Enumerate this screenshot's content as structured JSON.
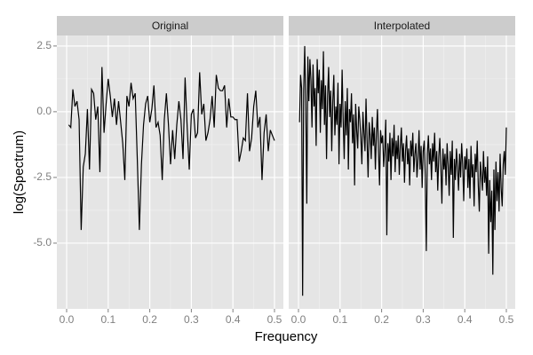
{
  "chart_data": [
    {
      "type": "line",
      "title": "Original",
      "xlabel": "Frequency",
      "ylabel": "log(Spectrum)",
      "color": "#000000",
      "xlim": [
        -0.0235,
        0.5214
      ],
      "ylim": [
        -7.5,
        2.9
      ],
      "xticks": [
        {
          "value": 0,
          "label": "0.0"
        },
        0.1,
        0.2,
        0.3,
        0.4,
        0.5
      ],
      "yticks": [
        {
          "value": -5,
          "label": "-5.0"
        },
        -2.5,
        {
          "value": 0,
          "label": "0.0"
        },
        2.5
      ],
      "x": [
        0.005,
        0.01,
        0.015,
        0.02,
        0.025,
        0.03,
        0.035,
        0.04,
        0.045,
        0.05,
        0.055,
        0.06,
        0.065,
        0.07,
        0.075,
        0.08,
        0.085,
        0.09,
        0.095,
        0.1,
        0.105,
        0.11,
        0.115,
        0.12,
        0.125,
        0.13,
        0.135,
        0.14,
        0.145,
        0.15,
        0.155,
        0.16,
        0.165,
        0.17,
        0.175,
        0.18,
        0.185,
        0.19,
        0.195,
        0.2,
        0.205,
        0.21,
        0.215,
        0.22,
        0.225,
        0.23,
        0.235,
        0.24,
        0.245,
        0.25,
        0.255,
        0.26,
        0.265,
        0.27,
        0.275,
        0.28,
        0.285,
        0.29,
        0.295,
        0.3,
        0.305,
        0.31,
        0.315,
        0.32,
        0.325,
        0.33,
        0.335,
        0.34,
        0.345,
        0.35,
        0.355,
        0.36,
        0.365,
        0.37,
        0.375,
        0.38,
        0.385,
        0.39,
        0.395,
        0.4,
        0.405,
        0.41,
        0.415,
        0.42,
        0.425,
        0.43,
        0.435,
        0.44,
        0.445,
        0.45,
        0.455,
        0.46,
        0.465,
        0.47,
        0.475,
        0.48,
        0.485,
        0.49,
        0.495,
        0.5
      ],
      "values": [
        -0.5,
        -0.6,
        0.85,
        0.2,
        0.4,
        -0.3,
        -4.5,
        -2.1,
        -1.6,
        0.1,
        -2.2,
        0.85,
        0.7,
        -0.3,
        0.2,
        -2.3,
        1.7,
        -0.8,
        0.3,
        1.25,
        0.6,
        -0.2,
        0.5,
        -0.5,
        0.4,
        -0.4,
        -1.2,
        -2.6,
        0.6,
        0.2,
        1.1,
        0.5,
        0.7,
        -1.8,
        -4.5,
        -2.0,
        -0.5,
        0.3,
        0.6,
        -0.4,
        0.1,
        1.0,
        -0.6,
        -0.4,
        -0.9,
        -2.6,
        -0.3,
        0.7,
        -0.5,
        -2.0,
        -0.7,
        -1.8,
        -0.5,
        0.4,
        -0.3,
        -1.8,
        1.3,
        -0.6,
        -2.2,
        -0.1,
        0.1,
        -1.0,
        -0.8,
        1.5,
        -0.1,
        0.3,
        -1.1,
        -0.8,
        -0.3,
        0.6,
        -0.6,
        1.4,
        0.9,
        0.8,
        0.8,
        1.0,
        -0.6,
        0.5,
        -0.2,
        -0.2,
        -0.3,
        -0.3,
        -1.9,
        -1.5,
        -1.0,
        -1.1,
        0.7,
        -1.5,
        -1.0,
        0.2,
        0.8,
        -0.6,
        -0.2,
        -2.6,
        -0.8,
        -0.1,
        -1.5,
        -0.7,
        -0.9,
        -1.1
      ]
    },
    {
      "type": "line",
      "title": "Interpolated",
      "color": "#000000",
      "xlim": [
        -0.0235,
        0.5214
      ],
      "xticks": [
        {
          "value": 0,
          "label": "0.0"
        },
        0.1,
        0.2,
        0.3,
        0.4,
        0.5
      ],
      "x": [
        0.0025,
        0.005,
        0.0075,
        0.01,
        0.0125,
        0.015,
        0.0175,
        0.02,
        0.0225,
        0.025,
        0.0275,
        0.03,
        0.0325,
        0.035,
        0.0375,
        0.04,
        0.0425,
        0.045,
        0.0475,
        0.05,
        0.0525,
        0.055,
        0.0575,
        0.06,
        0.0625,
        0.065,
        0.0675,
        0.07,
        0.0725,
        0.075,
        0.0775,
        0.08,
        0.0825,
        0.085,
        0.0875,
        0.09,
        0.0925,
        0.095,
        0.0975,
        0.1,
        0.1025,
        0.105,
        0.1075,
        0.11,
        0.1125,
        0.115,
        0.1175,
        0.12,
        0.1225,
        0.125,
        0.1275,
        0.13,
        0.1325,
        0.135,
        0.1375,
        0.14,
        0.1425,
        0.145,
        0.1475,
        0.15,
        0.1525,
        0.155,
        0.1575,
        0.16,
        0.1625,
        0.165,
        0.1675,
        0.17,
        0.1725,
        0.175,
        0.1775,
        0.18,
        0.1825,
        0.185,
        0.1875,
        0.19,
        0.1925,
        0.195,
        0.1975,
        0.2,
        0.2025,
        0.205,
        0.2075,
        0.21,
        0.2125,
        0.215,
        0.2175,
        0.22,
        0.2225,
        0.225,
        0.2275,
        0.23,
        0.2325,
        0.235,
        0.2375,
        0.24,
        0.2425,
        0.245,
        0.2475,
        0.25,
        0.2525,
        0.255,
        0.2575,
        0.26,
        0.2625,
        0.265,
        0.2675,
        0.27,
        0.2725,
        0.275,
        0.2775,
        0.28,
        0.2825,
        0.285,
        0.2875,
        0.29,
        0.2925,
        0.295,
        0.2975,
        0.3,
        0.3025,
        0.305,
        0.3075,
        0.31,
        0.3125,
        0.315,
        0.3175,
        0.32,
        0.3225,
        0.325,
        0.3275,
        0.33,
        0.3325,
        0.335,
        0.3375,
        0.34,
        0.3425,
        0.345,
        0.3475,
        0.35,
        0.3525,
        0.355,
        0.3575,
        0.36,
        0.3625,
        0.365,
        0.3675,
        0.37,
        0.3725,
        0.375,
        0.3775,
        0.38,
        0.3825,
        0.385,
        0.3875,
        0.39,
        0.3925,
        0.395,
        0.3975,
        0.4,
        0.4025,
        0.405,
        0.4075,
        0.41,
        0.4125,
        0.415,
        0.4175,
        0.42,
        0.4225,
        0.425,
        0.4275,
        0.43,
        0.4325,
        0.435,
        0.4375,
        0.44,
        0.4425,
        0.445,
        0.4475,
        0.45,
        0.4525,
        0.455,
        0.4575,
        0.46,
        0.4625,
        0.465,
        0.4675,
        0.47,
        0.4725,
        0.475,
        0.4775,
        0.48,
        0.4825,
        0.485,
        0.4875,
        0.49,
        0.4925,
        0.495,
        0.4975,
        0.5
      ],
      "values": [
        -0.4,
        1.4,
        0.9,
        -7.0,
        0.8,
        2.5,
        0.3,
        -3.5,
        2.1,
        0.4,
        2.0,
        1.2,
        -0.6,
        1.8,
        0.2,
        0.9,
        -1.3,
        2.0,
        0.7,
        1.6,
        -0.8,
        1.2,
        0.1,
        2.3,
        -0.5,
        1.0,
        -1.8,
        0.6,
        1.7,
        -0.2,
        0.8,
        -1.5,
        0.4,
        1.4,
        -0.9,
        0.2,
        -0.5,
        1.1,
        -2.0,
        0.3,
        -0.6,
        1.6,
        -0.3,
        -1.8,
        0.4,
        -0.9,
        0.9,
        -2.2,
        0.1,
        -0.4,
        0.7,
        -1.2,
        -0.1,
        -2.8,
        0.3,
        -0.7,
        -1.4,
        0.2,
        -0.3,
        -1.0,
        -2.0,
        0.0,
        -0.8,
        -1.5,
        0.5,
        -1.1,
        -2.5,
        -0.4,
        -0.9,
        -1.8,
        -0.2,
        -1.3,
        -0.6,
        -2.2,
        -0.8,
        0.1,
        -1.5,
        -2.8,
        -0.7,
        -1.2,
        -0.9,
        -2.1,
        -1.4,
        -0.3,
        -4.7,
        -1.2,
        -1.9,
        -0.8,
        -2.6,
        -1.0,
        -1.7,
        -0.5,
        -2.3,
        -1.1,
        -1.8,
        -0.9,
        -2.4,
        -1.3,
        -0.6,
        -1.9,
        -1.2,
        -2.7,
        -1.5,
        -0.9,
        -2.0,
        -1.4,
        -2.8,
        -1.1,
        -1.7,
        -0.8,
        -2.3,
        -1.6,
        -1.2,
        -2.5,
        -1.8,
        -0.7,
        -2.2,
        -1.3,
        -2.9,
        -1.5,
        -1.1,
        -2.4,
        -5.3,
        -1.6,
        -0.9,
        -2.0,
        -1.4,
        -2.6,
        -1.2,
        -1.9,
        -0.8,
        -2.3,
        -1.5,
        -3.0,
        -1.7,
        -1.0,
        -2.1,
        -3.5,
        -1.4,
        -2.2,
        -1.6,
        -2.8,
        -1.2,
        -2.0,
        -3.2,
        -1.5,
        -2.4,
        -1.1,
        -4.8,
        -1.8,
        -2.6,
        -1.4,
        -2.1,
        -3.0,
        -1.6,
        -2.5,
        -1.2,
        -2.0,
        -3.4,
        -1.7,
        -2.2,
        -1.4,
        -2.9,
        -1.8,
        -3.3,
        -1.3,
        -2.5,
        -2.0,
        -3.6,
        -1.6,
        -2.3,
        -1.1,
        -2.8,
        -3.8,
        -1.9,
        -2.4,
        -3.0,
        -1.5,
        -2.7,
        -2.1,
        -3.2,
        -1.7,
        -5.4,
        -2.6,
        -4.2,
        -3.0,
        -6.2,
        -2.2,
        -4.5,
        -1.9,
        -3.4,
        -2.3,
        -3.8,
        -1.6,
        -2.9,
        -3.6,
        -2.0,
        -1.5,
        -2.4,
        -0.6
      ]
    }
  ]
}
